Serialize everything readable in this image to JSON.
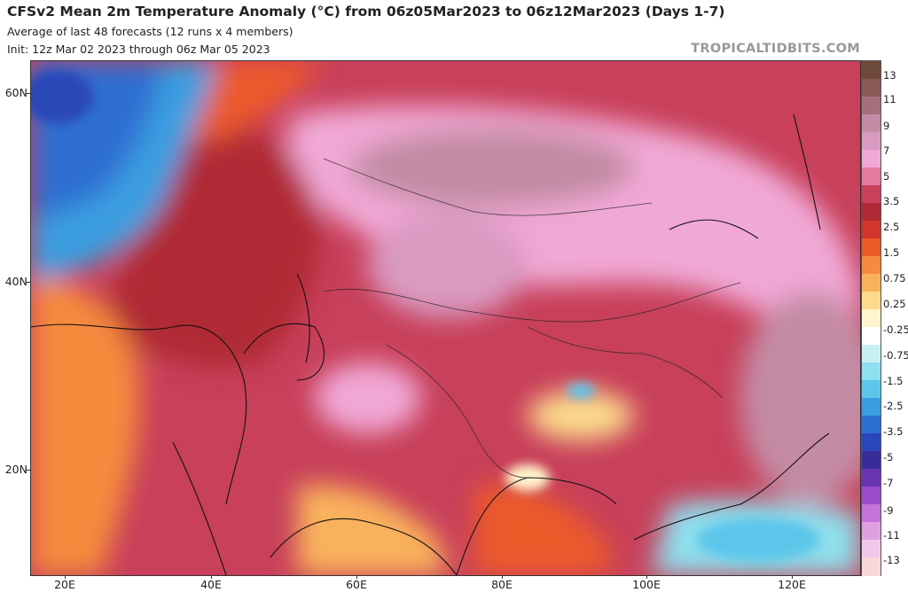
{
  "header": {
    "title": "CFSv2 Mean 2m Temperature Anomaly (°C) from 06z05Mar2023 to 06z12Mar2023 (Days 1-7)",
    "subtitle": "Average of last 48 forecasts (12 runs x 4 members)",
    "init": "Init: 12z Mar 02 2023 through 06z Mar 05 2023",
    "brand": "TROPICALTIDBITS.COM"
  },
  "map": {
    "lat_labels": [
      "60N",
      "40N",
      "20N"
    ],
    "lon_labels": [
      "20E",
      "40E",
      "60E",
      "80E",
      "100E",
      "120E"
    ]
  },
  "colorbar": {
    "labels": [
      "13",
      "11",
      "9",
      "7",
      "5",
      "3.5",
      "2.5",
      "1.5",
      "0.75",
      "0.25",
      "-0.25",
      "-0.75",
      "-1.5",
      "-2.5",
      "-3.5",
      "-5",
      "-7",
      "-9",
      "-11",
      "-13"
    ],
    "colors": [
      "#6e4a3a",
      "#8a5a55",
      "#a5707e",
      "#c48ba4",
      "#d99ac1",
      "#f0a8d6",
      "#e67aa0",
      "#c8405a",
      "#b02a35",
      "#d2352a",
      "#ec5a2a",
      "#f68a3e",
      "#f9b25c",
      "#fcdc8c",
      "#fff4cc",
      "#ffffff",
      "#c8f0f4",
      "#8ee0ee",
      "#5cc6ea",
      "#3a9ee0",
      "#2d6ed2",
      "#2a46b8",
      "#3a2c98",
      "#6a34b0",
      "#9a4cc8",
      "#c474d8",
      "#e0a0e0",
      "#f2c8ea",
      "#f8d8d8"
    ]
  }
}
